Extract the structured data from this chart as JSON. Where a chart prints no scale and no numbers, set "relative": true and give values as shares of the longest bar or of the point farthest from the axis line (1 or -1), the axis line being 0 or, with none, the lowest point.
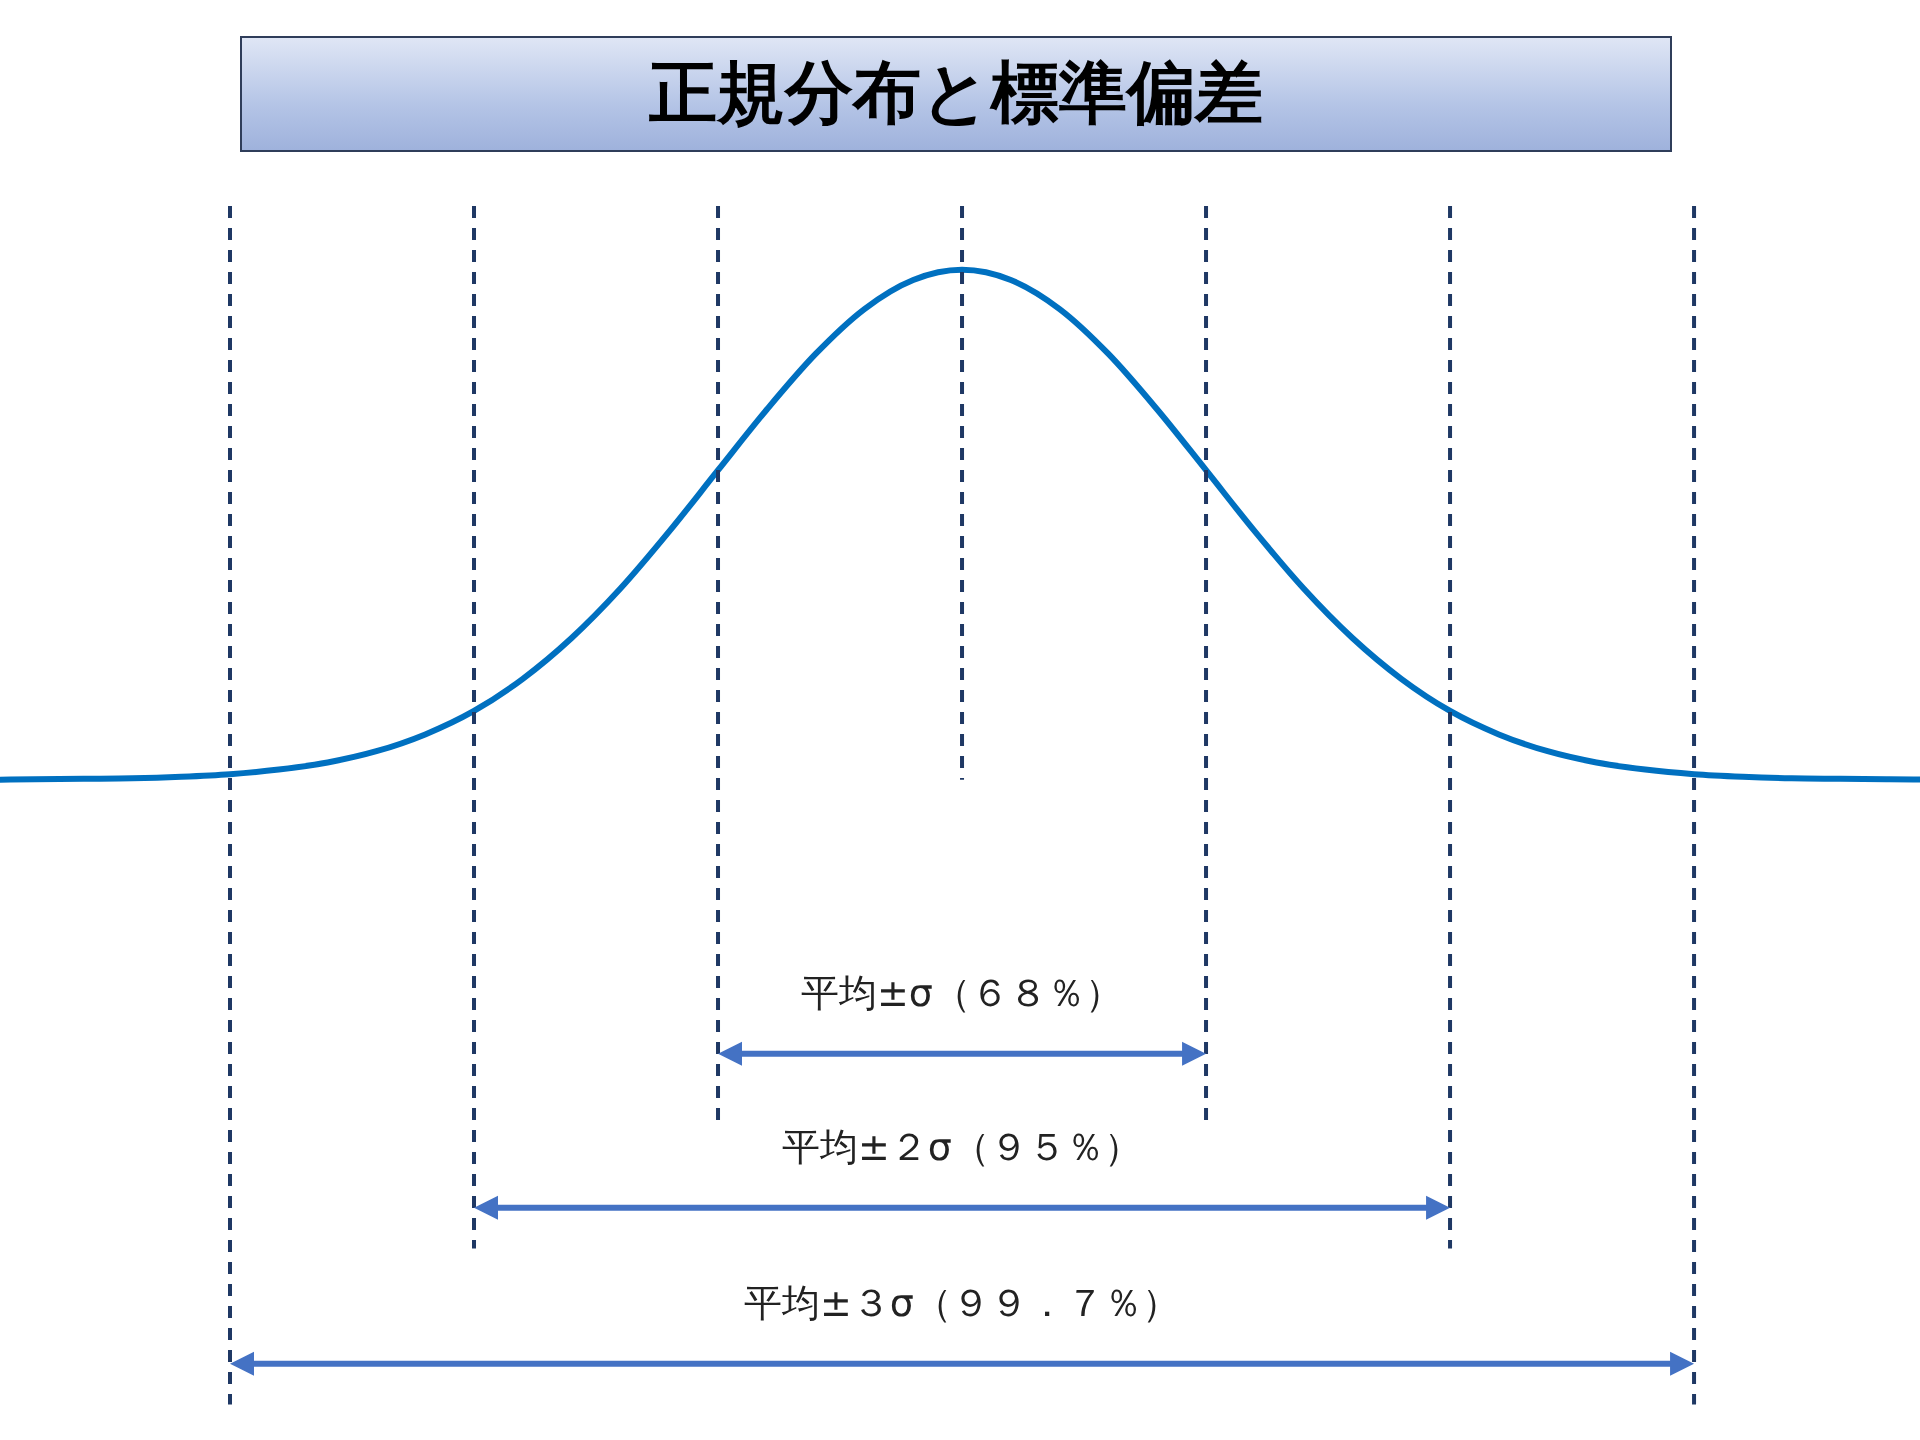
{
  "chart_data": {
    "type": "line",
    "title": "正規分布と標準偏差",
    "relative": true,
    "grid": "x",
    "marker": "none",
    "line_style": "solid",
    "categories": [
      null,
      null,
      null,
      null,
      null,
      null,
      null,
      null,
      null,
      null,
      null,
      null,
      null,
      null,
      null,
      null,
      null,
      null,
      null,
      null,
      null,
      null,
      null,
      null,
      null,
      null,
      null,
      null,
      null,
      null,
      null,
      null,
      null,
      null,
      null,
      null,
      null,
      null,
      null,
      null,
      null
    ],
    "series": [
      {
        "color": "#0070c0",
        "values": [
          0,
          0.001,
          0.002,
          0.003,
          0.006,
          0.011,
          0.02,
          0.034,
          0.056,
          0.089,
          0.135,
          0.198,
          0.278,
          0.375,
          0.487,
          0.607,
          0.726,
          0.835,
          0.923,
          0.98,
          1,
          0.98,
          0.923,
          0.835,
          0.726,
          0.607,
          0.487,
          0.375,
          0.278,
          0.198,
          0.135,
          0.089,
          0.056,
          0.034,
          0.02,
          0.011,
          0.006,
          0.003,
          0.002,
          0.001,
          0
        ]
      }
    ],
    "annotations": [
      "平均±σ（６８％）",
      "平均±２σ（９５％）",
      "平均±３σ（９９．７％）"
    ]
  }
}
